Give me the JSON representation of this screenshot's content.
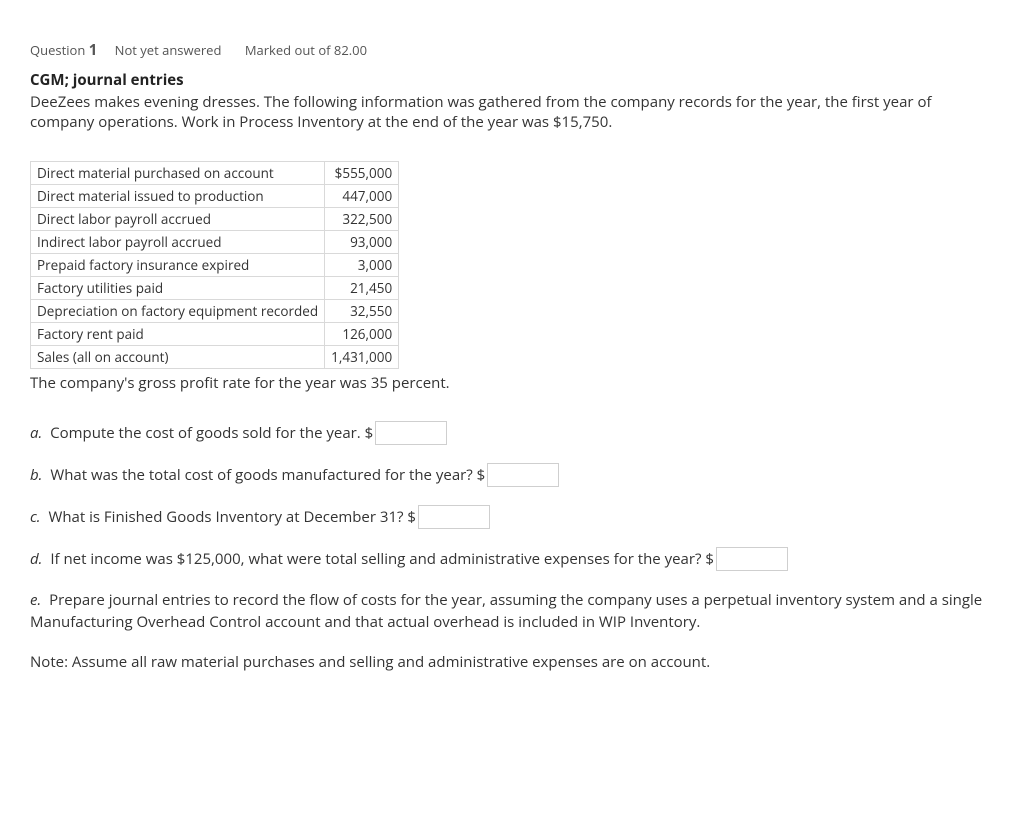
{
  "header": {
    "question_word": "Question",
    "question_number": "1",
    "status": "Not yet answered",
    "marked": "Marked out of 82.00"
  },
  "title": "CGM; journal entries",
  "intro": "DeeZees makes evening dresses. The following information was gathered from the company records for the year, the first year of company operations. Work in Process Inventory at the end of the year was $15,750.",
  "table": {
    "rows": [
      {
        "label": "Direct material purchased on account",
        "value": "$555,000"
      },
      {
        "label": "Direct material issued to production",
        "value": "447,000"
      },
      {
        "label": "Direct labor payroll accrued",
        "value": "322,500"
      },
      {
        "label": "Indirect labor payroll accrued",
        "value": "93,000"
      },
      {
        "label": "Prepaid factory insurance expired",
        "value": "3,000"
      },
      {
        "label": "Factory utilities paid",
        "value": "21,450"
      },
      {
        "label": "Depreciation on factory equipment recorded",
        "value": "32,550"
      },
      {
        "label": "Factory rent paid",
        "value": "126,000"
      },
      {
        "label": "Sales (all on account)",
        "value": "1,431,000"
      }
    ]
  },
  "after_table": "The company's gross profit rate for the year was 35 percent.",
  "questions": {
    "a": {
      "letter": "a.",
      "text": "Compute the cost of goods sold for the year. $"
    },
    "b": {
      "letter": "b.",
      "text": "What was the total cost of goods manufactured for the year? $"
    },
    "c": {
      "letter": "c.",
      "text": "What is Finished Goods Inventory at December 31? $"
    },
    "d": {
      "letter": "d.",
      "text": "If net income was $125,000, what were total selling and administrative expenses for the year? $"
    },
    "e": {
      "letter": "e.",
      "text": "Prepare journal entries to record the flow of costs for the year, assuming the company uses a perpetual inventory system and a single Manufacturing Overhead Control account and that actual overhead is included in WIP Inventory."
    }
  },
  "note": "Note: Assume all raw material purchases and selling and administrative expenses are on account."
}
